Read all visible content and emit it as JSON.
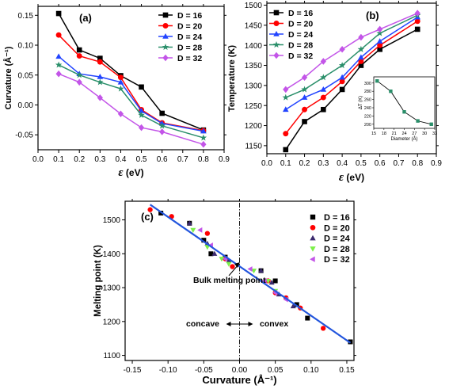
{
  "chart_data": [
    {
      "panel": "(a)",
      "type": "line",
      "xlabel": "ε (eV)",
      "ylabel": "Curvature (Å⁻¹)",
      "xlim": [
        0.0,
        0.9
      ],
      "ylim": [
        -0.075,
        0.165
      ],
      "xticks": [
        "0.0",
        "0.1",
        "0.2",
        "0.3",
        "0.4",
        "0.5",
        "0.6",
        "0.7",
        "0.8",
        "0.9"
      ],
      "yticks": [
        "-0.05",
        "0.00",
        "0.05",
        "0.10",
        "0.15"
      ],
      "legend_position": "top-right",
      "x": [
        0.1,
        0.2,
        0.3,
        0.4,
        0.5,
        0.6,
        0.8
      ],
      "series": [
        {
          "name": "D = 16",
          "color": "#000000",
          "marker": "square",
          "values": [
            0.153,
            0.092,
            0.078,
            0.049,
            0.03,
            -0.014,
            -0.042
          ]
        },
        {
          "name": "D = 20",
          "color": "#ff0000",
          "marker": "circle",
          "values": [
            0.117,
            0.082,
            0.072,
            0.046,
            -0.008,
            -0.03,
            -0.043
          ]
        },
        {
          "name": "D = 24",
          "color": "#2244ff",
          "marker": "triangle",
          "values": [
            0.081,
            0.052,
            0.047,
            0.038,
            -0.01,
            -0.031,
            -0.044
          ]
        },
        {
          "name": "D = 28",
          "color": "#2a8f6a",
          "marker": "star",
          "values": [
            0.067,
            0.05,
            0.038,
            0.027,
            -0.017,
            -0.035,
            -0.055
          ]
        },
        {
          "name": "D = 32",
          "color": "#c355e8",
          "marker": "diamond",
          "values": [
            0.052,
            0.038,
            0.012,
            -0.015,
            -0.038,
            -0.045,
            -0.066
          ]
        }
      ]
    },
    {
      "panel": "(b)",
      "type": "line",
      "xlabel": "ε (eV)",
      "ylabel": "Temperature (K)",
      "xlim": [
        0.0,
        0.9
      ],
      "ylim": [
        1130,
        1505
      ],
      "xticks": [
        "0.0",
        "0.1",
        "0.2",
        "0.3",
        "0.4",
        "0.5",
        "0.6",
        "0.7",
        "0.8",
        "0.9"
      ],
      "yticks": [
        "1150",
        "1200",
        "1250",
        "1300",
        "1350",
        "1400",
        "1450",
        "1500"
      ],
      "legend_position": "top-left",
      "x": [
        0.1,
        0.2,
        0.3,
        0.4,
        0.5,
        0.6,
        0.8
      ],
      "series": [
        {
          "name": "D = 16",
          "color": "#000000",
          "marker": "square",
          "values": [
            1140,
            1210,
            1240,
            1290,
            1350,
            1390,
            1440
          ]
        },
        {
          "name": "D = 20",
          "color": "#ff0000",
          "marker": "circle",
          "values": [
            1180,
            1240,
            1270,
            1310,
            1360,
            1400,
            1460
          ]
        },
        {
          "name": "D = 24",
          "color": "#2244ff",
          "marker": "triangle",
          "values": [
            1240,
            1270,
            1290,
            1320,
            1370,
            1410,
            1470
          ]
        },
        {
          "name": "D = 28",
          "color": "#2a8f6a",
          "marker": "star",
          "values": [
            1270,
            1290,
            1320,
            1350,
            1390,
            1430,
            1475
          ]
        },
        {
          "name": "D = 32",
          "color": "#c355e8",
          "marker": "diamond",
          "values": [
            1290,
            1320,
            1360,
            1390,
            1420,
            1440,
            1480
          ]
        }
      ],
      "inset": {
        "type": "line",
        "xlabel": "Diameter (Å)",
        "ylabel": "ΔT (K)",
        "xlim": [
          15,
          33
        ],
        "ylim": [
          190,
          315
        ],
        "xticks": [
          "15",
          "18",
          "21",
          "24",
          "27",
          "30",
          "33"
        ],
        "yticks": [
          "200",
          "220",
          "240",
          "260",
          "280",
          "300"
        ],
        "x": [
          16,
          20,
          24,
          28,
          32
        ],
        "values": [
          305,
          280,
          230,
          208,
          200
        ],
        "color": "#000000",
        "marker_color": "#2a8f6a"
      }
    },
    {
      "panel": "(c)",
      "type": "scatter",
      "xlabel": "Curvature (Å⁻¹)",
      "ylabel": "Melting point (K)",
      "xlim": [
        -0.16,
        0.16
      ],
      "ylim": [
        1085,
        1555
      ],
      "xticks": [
        "-0.15",
        "-0.10",
        "-0.05",
        "0.00",
        "0.05",
        "0.10",
        "0.15"
      ],
      "yticks": [
        "1100",
        "1200",
        "1300",
        "1400",
        "1500"
      ],
      "legend_position": "top-right",
      "fit_line": {
        "color": "#2255dd",
        "x": [
          -0.125,
          0.155
        ],
        "y": [
          1545,
          1137
        ]
      },
      "vline_x": 0,
      "annotations": {
        "bulk": "Bulk melting point",
        "concave": "concave",
        "convex": "convex"
      },
      "series": [
        {
          "name": "D = 16",
          "color": "#000000",
          "marker": "square",
          "points": [
            [
              -0.11,
              1520
            ],
            [
              -0.07,
              1490
            ],
            [
              -0.05,
              1440
            ],
            [
              -0.04,
              1400
            ],
            [
              -0.02,
              1390
            ],
            [
              0.03,
              1350
            ],
            [
              0.05,
              1320
            ],
            [
              0.08,
              1250
            ],
            [
              0.095,
              1210
            ],
            [
              0.155,
              1140
            ]
          ]
        },
        {
          "name": "D = 20",
          "color": "#ff0000",
          "marker": "circle",
          "points": [
            [
              -0.125,
              1530
            ],
            [
              -0.095,
              1510
            ],
            [
              -0.045,
              1460
            ],
            [
              -0.02,
              1385
            ],
            [
              -0.01,
              1362
            ],
            [
              0.04,
              1320
            ],
            [
              0.05,
              1285
            ],
            [
              0.065,
              1270
            ],
            [
              0.085,
              1240
            ],
            [
              0.117,
              1180
            ]
          ]
        },
        {
          "name": "D = 24",
          "color": "#3b2a6e",
          "marker": "triangle",
          "points": [
            [
              -0.07,
              1490
            ],
            [
              -0.045,
              1430
            ],
            [
              -0.035,
              1400
            ],
            [
              -0.015,
              1380
            ],
            [
              0.03,
              1350
            ],
            [
              0.045,
              1315
            ],
            [
              0.055,
              1280
            ],
            [
              0.075,
              1245
            ]
          ]
        },
        {
          "name": "D = 28",
          "color": "#7cf049",
          "marker": "triangle-down",
          "points": [
            [
              -0.065,
              1470
            ],
            [
              -0.045,
              1420
            ],
            [
              -0.025,
              1385
            ],
            [
              -0.015,
              1370
            ],
            [
              0.02,
              1350
            ],
            [
              0.04,
              1320
            ],
            [
              0.05,
              1290
            ]
          ]
        },
        {
          "name": "D = 32",
          "color": "#c355e8",
          "marker": "triangle-left",
          "points": [
            [
              -0.055,
              1470
            ],
            [
              -0.04,
              1425
            ],
            [
              -0.02,
              1385
            ],
            [
              0.015,
              1355
            ],
            [
              0.035,
              1320
            ],
            [
              0.05,
              1285
            ],
            [
              0.065,
              1265
            ]
          ]
        }
      ]
    }
  ]
}
